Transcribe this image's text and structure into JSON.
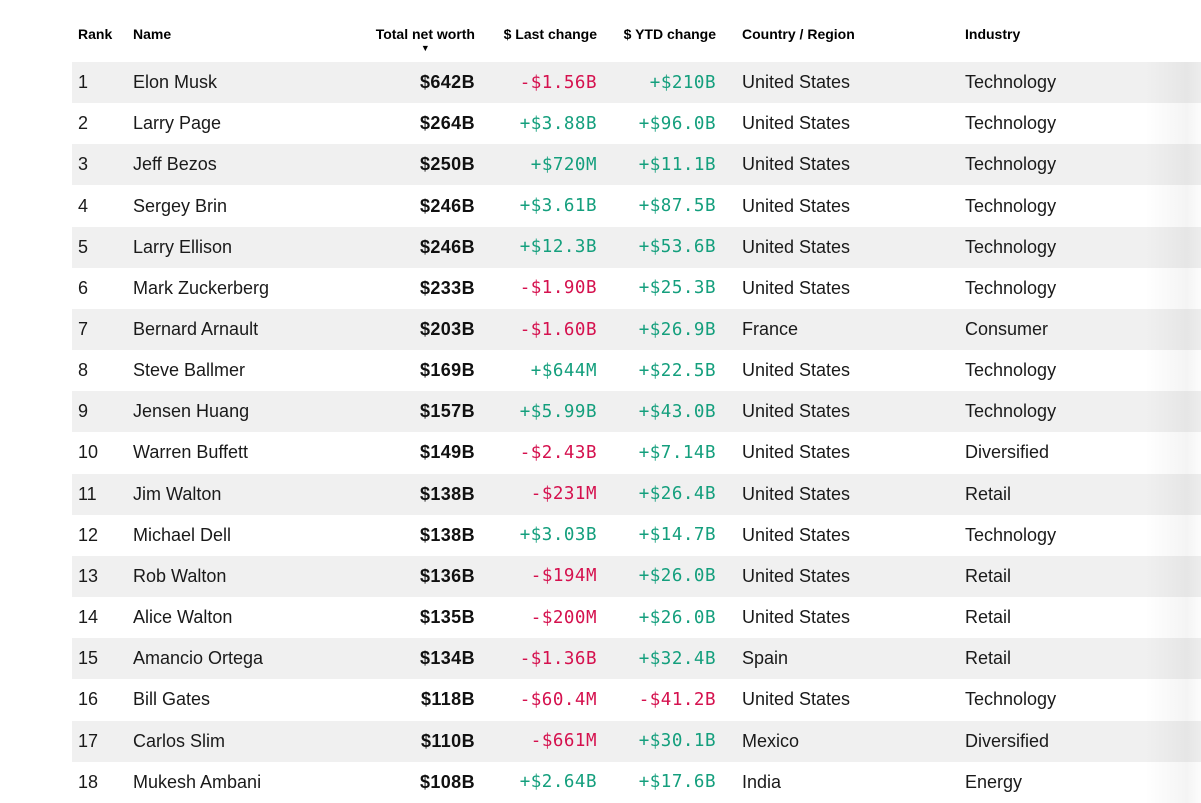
{
  "colors": {
    "positive": "#149f7d",
    "negative": "#d5114e",
    "row_stripe": "#f0f0f0"
  },
  "table": {
    "columns": [
      {
        "label": "Rank"
      },
      {
        "label": "Name"
      },
      {
        "label": "Total net worth"
      },
      {
        "label": "$ Last change"
      },
      {
        "label": "$ YTD change"
      },
      {
        "label": "Country / Region"
      },
      {
        "label": "Industry"
      }
    ],
    "sort": {
      "column": "Total net worth",
      "direction": "desc",
      "icon": "▼"
    },
    "rows": [
      {
        "rank": "1",
        "name": "Elon Musk",
        "networth": "$642B",
        "last_change": "-$1.56B",
        "ytd_change": "+$210B",
        "country": "United States",
        "industry": "Technology"
      },
      {
        "rank": "2",
        "name": "Larry Page",
        "networth": "$264B",
        "last_change": "+$3.88B",
        "ytd_change": "+$96.0B",
        "country": "United States",
        "industry": "Technology"
      },
      {
        "rank": "3",
        "name": "Jeff Bezos",
        "networth": "$250B",
        "last_change": "+$720M",
        "ytd_change": "+$11.1B",
        "country": "United States",
        "industry": "Technology"
      },
      {
        "rank": "4",
        "name": "Sergey Brin",
        "networth": "$246B",
        "last_change": "+$3.61B",
        "ytd_change": "+$87.5B",
        "country": "United States",
        "industry": "Technology"
      },
      {
        "rank": "5",
        "name": "Larry Ellison",
        "networth": "$246B",
        "last_change": "+$12.3B",
        "ytd_change": "+$53.6B",
        "country": "United States",
        "industry": "Technology"
      },
      {
        "rank": "6",
        "name": "Mark Zuckerberg",
        "networth": "$233B",
        "last_change": "-$1.90B",
        "ytd_change": "+$25.3B",
        "country": "United States",
        "industry": "Technology"
      },
      {
        "rank": "7",
        "name": "Bernard Arnault",
        "networth": "$203B",
        "last_change": "-$1.60B",
        "ytd_change": "+$26.9B",
        "country": "France",
        "industry": "Consumer"
      },
      {
        "rank": "8",
        "name": "Steve Ballmer",
        "networth": "$169B",
        "last_change": "+$644M",
        "ytd_change": "+$22.5B",
        "country": "United States",
        "industry": "Technology"
      },
      {
        "rank": "9",
        "name": "Jensen Huang",
        "networth": "$157B",
        "last_change": "+$5.99B",
        "ytd_change": "+$43.0B",
        "country": "United States",
        "industry": "Technology"
      },
      {
        "rank": "10",
        "name": "Warren Buffett",
        "networth": "$149B",
        "last_change": "-$2.43B",
        "ytd_change": "+$7.14B",
        "country": "United States",
        "industry": "Diversified"
      },
      {
        "rank": "11",
        "name": "Jim Walton",
        "networth": "$138B",
        "last_change": "-$231M",
        "ytd_change": "+$26.4B",
        "country": "United States",
        "industry": "Retail"
      },
      {
        "rank": "12",
        "name": "Michael Dell",
        "networth": "$138B",
        "last_change": "+$3.03B",
        "ytd_change": "+$14.7B",
        "country": "United States",
        "industry": "Technology"
      },
      {
        "rank": "13",
        "name": "Rob Walton",
        "networth": "$136B",
        "last_change": "-$194M",
        "ytd_change": "+$26.0B",
        "country": "United States",
        "industry": "Retail"
      },
      {
        "rank": "14",
        "name": "Alice Walton",
        "networth": "$135B",
        "last_change": "-$200M",
        "ytd_change": "+$26.0B",
        "country": "United States",
        "industry": "Retail"
      },
      {
        "rank": "15",
        "name": "Amancio Ortega",
        "networth": "$134B",
        "last_change": "-$1.36B",
        "ytd_change": "+$32.4B",
        "country": "Spain",
        "industry": "Retail"
      },
      {
        "rank": "16",
        "name": "Bill Gates",
        "networth": "$118B",
        "last_change": "-$60.4M",
        "ytd_change": "-$41.2B",
        "country": "United States",
        "industry": "Technology"
      },
      {
        "rank": "17",
        "name": "Carlos Slim",
        "networth": "$110B",
        "last_change": "-$661M",
        "ytd_change": "+$30.1B",
        "country": "Mexico",
        "industry": "Diversified"
      },
      {
        "rank": "18",
        "name": "Mukesh Ambani",
        "networth": "$108B",
        "last_change": "+$2.64B",
        "ytd_change": "+$17.6B",
        "country": "India",
        "industry": "Energy"
      }
    ]
  }
}
